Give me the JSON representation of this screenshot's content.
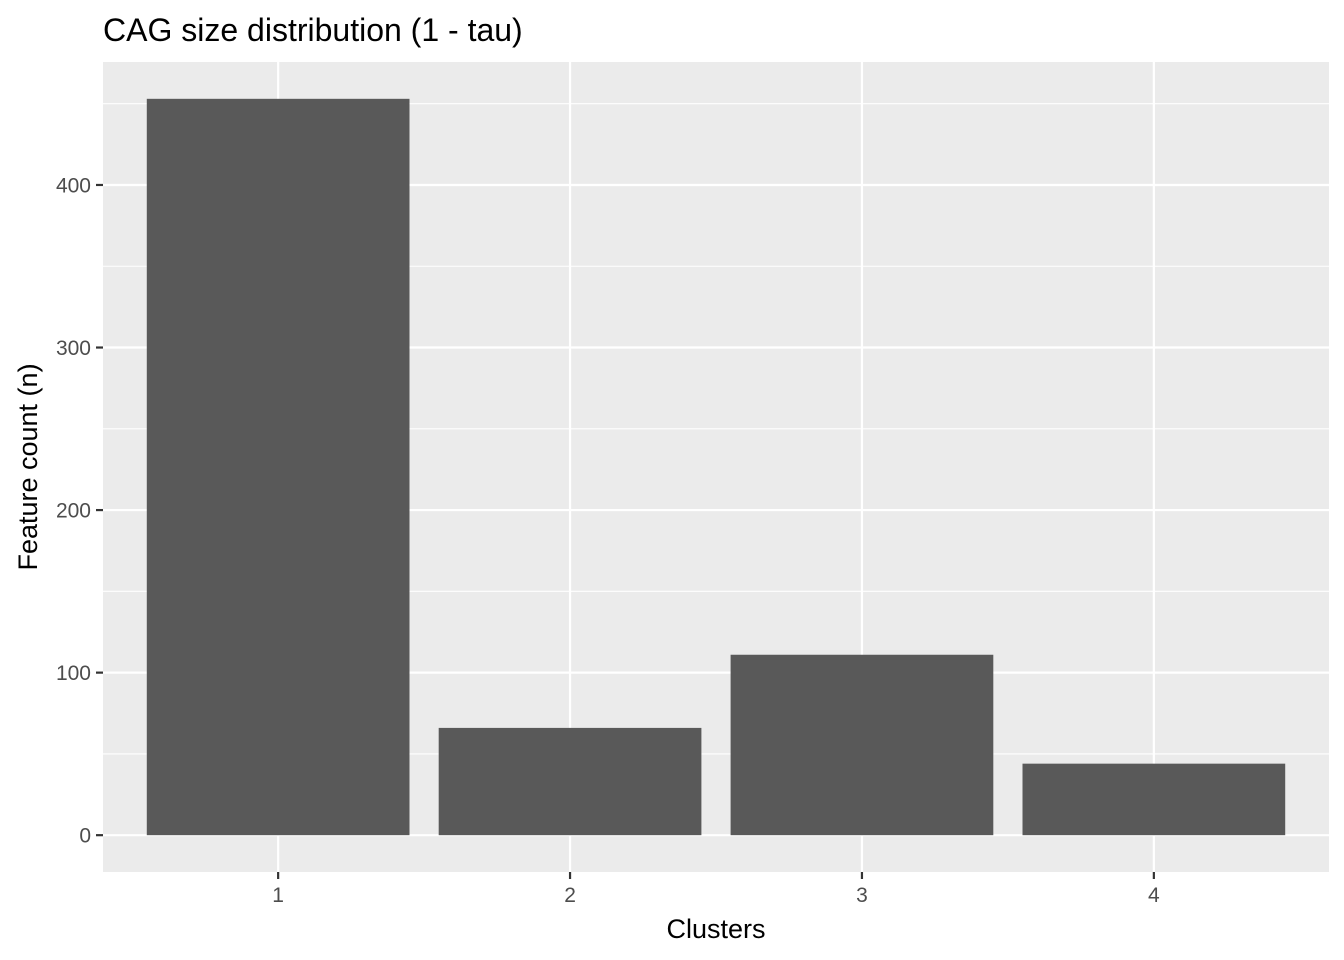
{
  "chart_data": {
    "type": "bar",
    "title": "CAG size distribution (1 - tau)",
    "xlabel": "Clusters",
    "ylabel": "Feature count (n)",
    "categories": [
      "1",
      "2",
      "3",
      "4"
    ],
    "values": [
      453,
      66,
      111,
      44
    ],
    "ylim": [
      -22.65,
      475.65
    ],
    "y_ticks": [
      0,
      100,
      200,
      300,
      400
    ],
    "y_tick_labels": [
      "0",
      "100",
      "200",
      "300",
      "400"
    ],
    "grid": true,
    "legend": "none",
    "colors": {
      "bar": "#595959",
      "panel": "#ebebeb",
      "grid": "#ffffff",
      "tick_text": "#4d4d4d",
      "tick_mark": "#333333"
    }
  }
}
